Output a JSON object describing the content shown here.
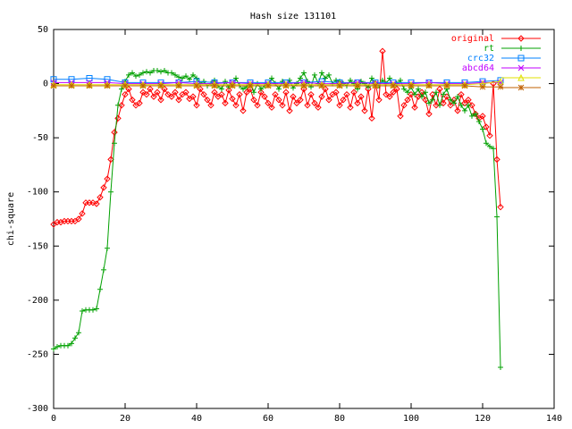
{
  "chart_data": {
    "type": "line",
    "title": "Hash size 131101",
    "y_label": "chi-square",
    "x": [
      0,
      1,
      2,
      3,
      4,
      5,
      6,
      7,
      8,
      9,
      10,
      11,
      12,
      13,
      14,
      15,
      16,
      17,
      18,
      19,
      20,
      21,
      22,
      23,
      24,
      25,
      26,
      27,
      28,
      29,
      30,
      31,
      32,
      33,
      34,
      35,
      36,
      37,
      38,
      39,
      40,
      41,
      42,
      43,
      44,
      45,
      46,
      47,
      48,
      49,
      50,
      51,
      52,
      53,
      54,
      55,
      56,
      57,
      58,
      59,
      60,
      61,
      62,
      63,
      64,
      65,
      66,
      67,
      68,
      69,
      70,
      71,
      72,
      73,
      74,
      75,
      76,
      77,
      78,
      79,
      80,
      81,
      82,
      83,
      84,
      85,
      86,
      87,
      88,
      89,
      90,
      91,
      92,
      93,
      94,
      95,
      96,
      97,
      98,
      99,
      100,
      101,
      102,
      103,
      104,
      105,
      106,
      107,
      108,
      109,
      110,
      111,
      112,
      113,
      114,
      115,
      116,
      117,
      118,
      119,
      120,
      121,
      122,
      123,
      124,
      125
    ],
    "series": [
      {
        "name": "original",
        "color": "#ff0000",
        "point": "diamond",
        "values": [
          -130,
          -128,
          -128,
          -127,
          -127,
          -127,
          -127,
          -125,
          -120,
          -110,
          -110,
          -110,
          -111,
          -105,
          -96,
          -88,
          -70,
          -45,
          -32,
          -20,
          -10,
          -5,
          -15,
          -20,
          -18,
          -8,
          -10,
          -5,
          -12,
          -8,
          -15,
          -5,
          -10,
          -12,
          -8,
          -15,
          -10,
          -8,
          -14,
          -12,
          -20,
          -5,
          -10,
          -15,
          -20,
          -8,
          -12,
          -10,
          -18,
          -6,
          -14,
          -20,
          -10,
          -25,
          -8,
          -5,
          -15,
          -20,
          -8,
          -12,
          -18,
          -22,
          -10,
          -15,
          -20,
          -8,
          -25,
          -12,
          -18,
          -15,
          -5,
          -20,
          -10,
          -18,
          -22,
          -12,
          -5,
          -15,
          -10,
          -8,
          -20,
          -15,
          -10,
          -22,
          -8,
          -18,
          -12,
          -25,
          -5,
          -32,
          0,
          -15,
          30,
          -10,
          -12,
          -8,
          -5,
          -30,
          -20,
          -15,
          -10,
          -22,
          -12,
          -8,
          -15,
          -28,
          -10,
          -20,
          -5,
          -18,
          -12,
          -20,
          -15,
          -25,
          -10,
          -18,
          -15,
          -20,
          -28,
          -32,
          -30,
          -40,
          -48,
          0,
          -70,
          -114
        ]
      },
      {
        "name": "rt",
        "color": "#00a000",
        "point": "plus",
        "values": [
          -245,
          -243,
          -242,
          -242,
          -242,
          -240,
          -235,
          -230,
          -210,
          -209,
          -209,
          -209,
          -208,
          -190,
          -172,
          -152,
          -100,
          -55,
          -20,
          -5,
          2,
          8,
          10,
          7,
          8,
          10,
          11,
          10,
          12,
          12,
          11,
          12,
          10,
          10,
          8,
          6,
          5,
          7,
          4,
          8,
          5,
          0,
          2,
          -2,
          0,
          3,
          -2,
          -5,
          2,
          -3,
          0,
          5,
          -2,
          -5,
          -3,
          0,
          -8,
          0,
          -5,
          -2,
          0,
          5,
          0,
          -5,
          2,
          0,
          3,
          -4,
          0,
          5,
          10,
          2,
          -3,
          8,
          0,
          10,
          5,
          8,
          0,
          3,
          2,
          0,
          -2,
          3,
          0,
          -5,
          2,
          0,
          -3,
          5,
          0,
          -2,
          3,
          0,
          5,
          -2,
          0,
          3,
          -5,
          -8,
          -3,
          -10,
          -5,
          -12,
          -8,
          -18,
          -15,
          -8,
          -20,
          -10,
          -5,
          -15,
          -18,
          -12,
          -20,
          -25,
          -20,
          -30,
          -28,
          -35,
          -42,
          -55,
          -58,
          -60,
          -123,
          -262
        ]
      },
      {
        "name": "crc32",
        "color": "#0080ff",
        "point": "square",
        "x": [
          0,
          5,
          10,
          15,
          20,
          25,
          30,
          35,
          40,
          45,
          50,
          55,
          60,
          65,
          70,
          75,
          80,
          85,
          90,
          95,
          100,
          105,
          110,
          115,
          120,
          125
        ],
        "values": [
          4,
          4,
          5,
          4,
          1,
          1,
          1,
          1,
          2,
          1,
          1,
          1,
          1,
          1,
          1,
          2,
          1,
          1,
          1,
          1,
          1,
          1,
          1,
          1,
          2,
          3
        ]
      },
      {
        "name": "abcd64",
        "color": "#c000ff",
        "point": "cross",
        "x": [
          0,
          5,
          10,
          15,
          20,
          25,
          30,
          35,
          40,
          45,
          50,
          55,
          60,
          65,
          70,
          75,
          80,
          85,
          90,
          95,
          100,
          105,
          110,
          115,
          120,
          125
        ],
        "values": [
          1,
          1,
          1,
          1,
          0,
          0,
          0,
          1,
          0,
          0,
          1,
          0,
          0,
          0,
          1,
          0,
          0,
          1,
          0,
          0,
          0,
          1,
          0,
          0,
          1,
          1
        ]
      },
      {
        "color": "#e0e000",
        "point": "triangle",
        "x": [
          0,
          5,
          10,
          15,
          20,
          25,
          30,
          35,
          40,
          45,
          50,
          55,
          60,
          65,
          70,
          75,
          80,
          85,
          90,
          95,
          100,
          105,
          110,
          115,
          120,
          125
        ],
        "values": [
          -1,
          -1,
          -1,
          -1,
          -1,
          -1,
          -1,
          -1,
          -1,
          -1,
          -1,
          -1,
          -1,
          -1,
          -1,
          -1,
          -1,
          -1,
          -1,
          -1,
          -1,
          -1,
          -1,
          -1,
          0,
          2
        ]
      },
      {
        "color": "#c06000",
        "point": "star",
        "x": [
          0,
          5,
          10,
          15,
          20,
          25,
          30,
          35,
          40,
          45,
          50,
          55,
          60,
          65,
          70,
          75,
          80,
          85,
          90,
          95,
          100,
          105,
          110,
          115,
          120,
          125
        ],
        "values": [
          -2,
          -2,
          -2,
          -2,
          -2,
          -2,
          -2,
          -2,
          -2,
          -2,
          -2,
          -2,
          -2,
          -2,
          -2,
          -2,
          -2,
          -2,
          -2,
          -2,
          -2,
          -2,
          -2,
          -2,
          -3,
          -3
        ]
      }
    ],
    "xlim": [
      0,
      140
    ],
    "xticks": [
      0,
      20,
      40,
      60,
      80,
      100,
      120,
      140
    ],
    "ylim": [
      -300,
      50
    ],
    "yticks": [
      -300,
      -250,
      -200,
      -150,
      -100,
      -50,
      0,
      50
    ],
    "legend": "top-right"
  }
}
